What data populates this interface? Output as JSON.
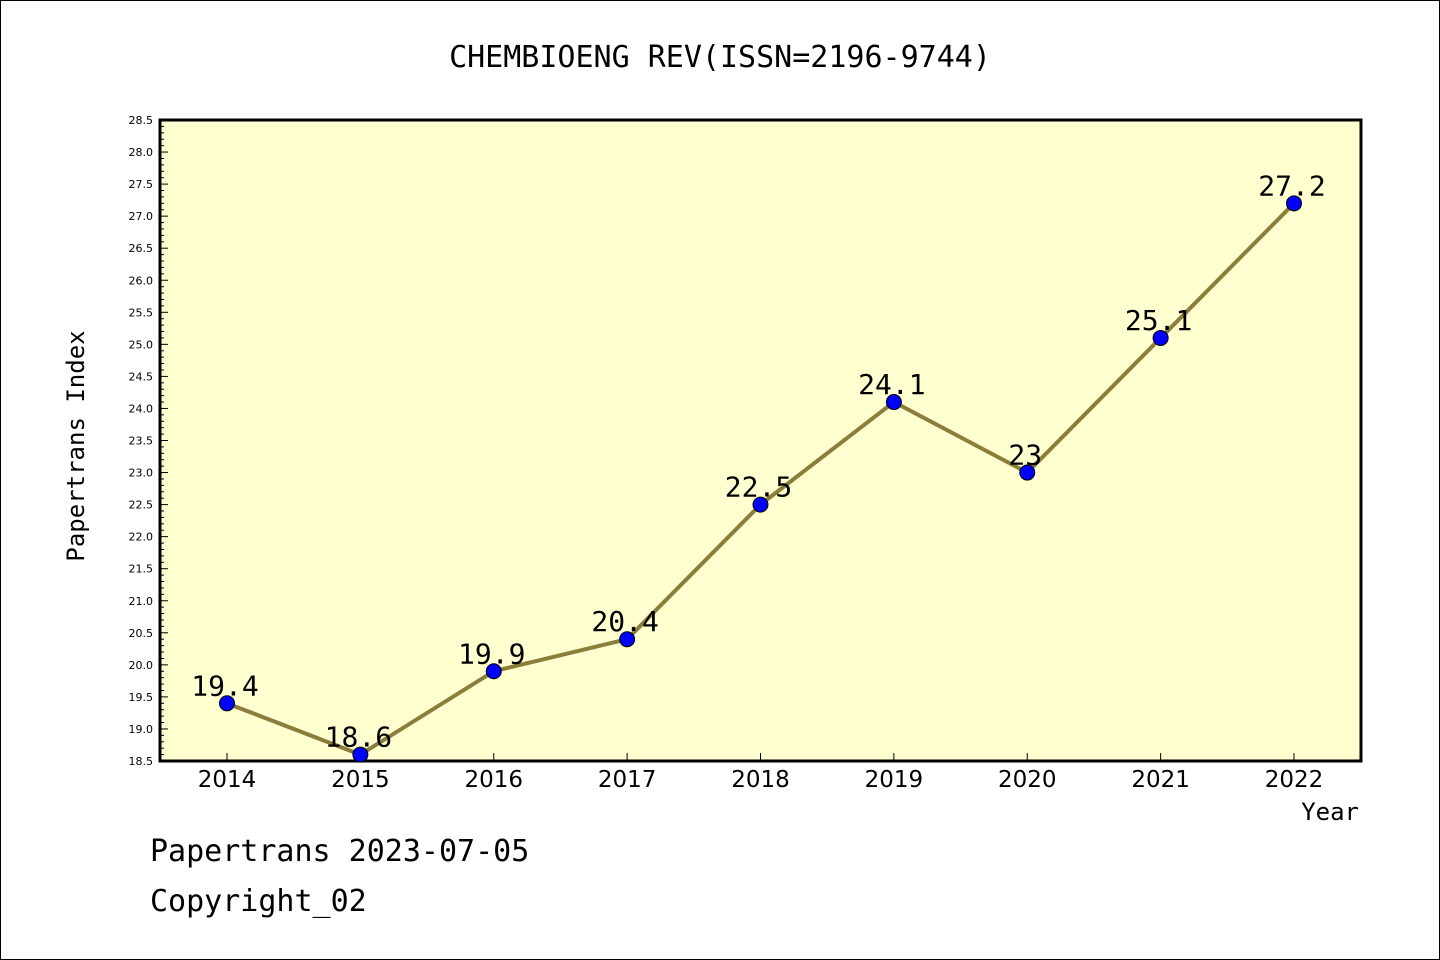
{
  "chart_data": {
    "type": "line",
    "title": "CHEMBIOENG REV(ISSN=2196-9744)",
    "xlabel": "Year",
    "ylabel": "Papertrans Index",
    "categories": [
      "2014",
      "2015",
      "2016",
      "2017",
      "2018",
      "2019",
      "2020",
      "2021",
      "2022"
    ],
    "series": [
      {
        "values": [
          19.4,
          18.6,
          19.9,
          20.4,
          22.5,
          24.1,
          23.0,
          25.1,
          27.2
        ],
        "labels": [
          "19.4",
          "18.6",
          "19.9",
          "20.4",
          "22.5",
          "24.1",
          "23",
          "25.1",
          "27.2"
        ]
      }
    ],
    "ylim": [
      18.5,
      28.5
    ],
    "ytick_step": 0.5,
    "yticks": [
      "18.5",
      "19.0",
      "19.5",
      "20.0",
      "20.5",
      "21.0",
      "21.5",
      "22.0",
      "22.5",
      "23.0",
      "23.5",
      "24.0",
      "24.5",
      "25.0",
      "25.5",
      "26.0",
      "26.5",
      "27.0",
      "27.5",
      "28.0",
      "28.5"
    ],
    "grid": false,
    "colors": {
      "plot_background": "#ffffd0",
      "line": "#8b7d3a",
      "marker": "#0000ff"
    }
  },
  "footer": {
    "line1": "Papertrans 2023-07-05",
    "line2": "Copyright_02"
  }
}
